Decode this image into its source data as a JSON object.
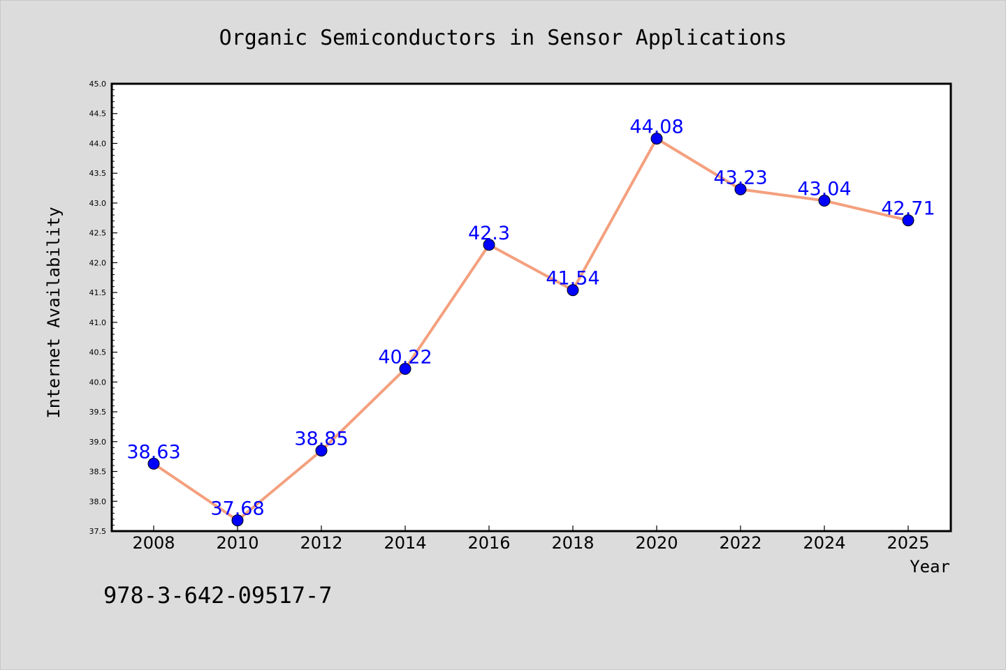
{
  "chart_data": {
    "type": "line",
    "title": "Organic Semiconductors in Sensor Applications",
    "xlabel": "Year",
    "ylabel": "Internet Availability",
    "categories": [
      "2008",
      "2010",
      "2012",
      "2014",
      "2016",
      "2018",
      "2020",
      "2022",
      "2024",
      "2025"
    ],
    "values": [
      38.63,
      37.68,
      38.85,
      40.22,
      42.3,
      41.54,
      44.08,
      43.23,
      43.04,
      42.71
    ],
    "data_labels": [
      "38.63",
      "37.68",
      "38.85",
      "40.22",
      "42.3",
      "41.54",
      "44.08",
      "43.23",
      "43.04",
      "42.71"
    ],
    "ylim": [
      37.5,
      45.0
    ],
    "yticks": [
      "37.5",
      "38.0",
      "38.5",
      "39.0",
      "39.5",
      "40.0",
      "40.5",
      "41.0",
      "41.5",
      "42.0",
      "42.5",
      "43.0",
      "43.5",
      "44.0",
      "44.5",
      "45.0"
    ],
    "grid": false,
    "legend": "none",
    "colors": {
      "line": "#f4a07e",
      "marker": "#0000ff",
      "label": "#0000ff",
      "background": "#dcdcdc",
      "plot_background": "#ffffff"
    }
  },
  "annotation": "978-3-642-09517-7"
}
